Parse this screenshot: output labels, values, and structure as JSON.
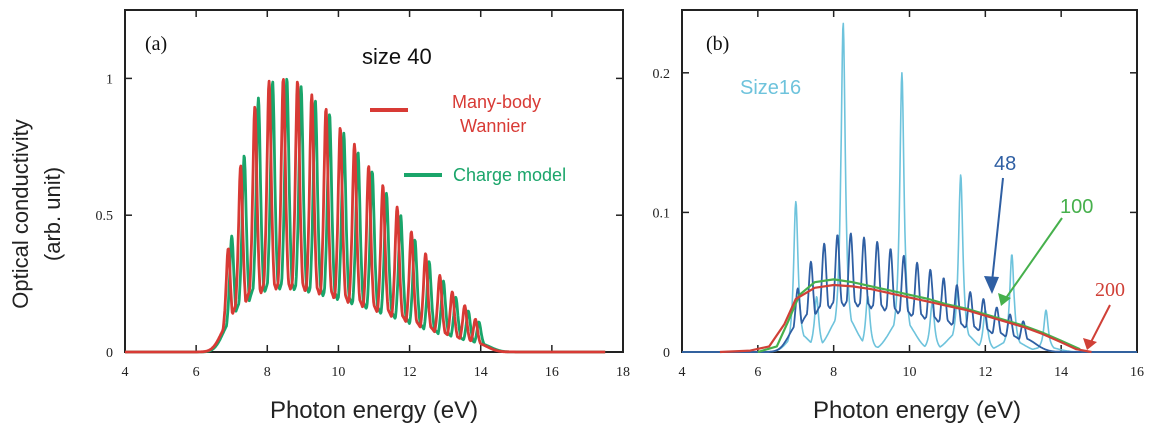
{
  "figure": {
    "ylabel_line1": "Optical conductivity",
    "ylabel_line2": "(arb. unit)"
  },
  "chart_data": [
    {
      "type": "line",
      "panel_label": "(a)",
      "annotation": "size 40",
      "xlabel": "Photon energy (eV)",
      "xlim": [
        4,
        18
      ],
      "ylim": [
        0,
        1.25
      ],
      "xticks": [
        4,
        6,
        8,
        10,
        12,
        14,
        16,
        18
      ],
      "yticks": [
        0,
        0.5,
        1
      ],
      "ytick_labels": [
        "0",
        "0.5",
        "1"
      ],
      "grid": false,
      "legend_position": "top-right",
      "series": [
        {
          "name": "Many-body Wannier",
          "color": "#d83a35",
          "onset": 6.0,
          "cutoff": 14.8,
          "peaks": [
            {
              "x": 6.9,
              "y": 0.45
            },
            {
              "x": 7.25,
              "y": 0.7
            },
            {
              "x": 7.65,
              "y": 0.9
            },
            {
              "x": 8.05,
              "y": 0.99
            },
            {
              "x": 8.45,
              "y": 1.0
            },
            {
              "x": 8.85,
              "y": 0.99
            },
            {
              "x": 9.25,
              "y": 0.94
            },
            {
              "x": 9.65,
              "y": 0.89
            },
            {
              "x": 10.05,
              "y": 0.82
            },
            {
              "x": 10.45,
              "y": 0.76
            },
            {
              "x": 10.85,
              "y": 0.68
            },
            {
              "x": 11.25,
              "y": 0.61
            },
            {
              "x": 11.65,
              "y": 0.53
            },
            {
              "x": 12.05,
              "y": 0.44
            },
            {
              "x": 12.45,
              "y": 0.36
            },
            {
              "x": 12.85,
              "y": 0.28
            },
            {
              "x": 13.2,
              "y": 0.22
            },
            {
              "x": 13.55,
              "y": 0.17
            },
            {
              "x": 13.85,
              "y": 0.12
            }
          ]
        },
        {
          "name": "Charge model",
          "color": "#1aa56a",
          "onset": 6.0,
          "cutoff": 14.8,
          "peaks": [
            {
              "x": 7.0,
              "y": 0.47
            },
            {
              "x": 7.35,
              "y": 0.73
            },
            {
              "x": 7.75,
              "y": 0.93
            },
            {
              "x": 8.15,
              "y": 0.99
            },
            {
              "x": 8.55,
              "y": 1.0
            },
            {
              "x": 8.95,
              "y": 0.97
            },
            {
              "x": 9.35,
              "y": 0.92
            },
            {
              "x": 9.75,
              "y": 0.87
            },
            {
              "x": 10.15,
              "y": 0.8
            },
            {
              "x": 10.55,
              "y": 0.73
            },
            {
              "x": 10.95,
              "y": 0.66
            },
            {
              "x": 11.35,
              "y": 0.58
            },
            {
              "x": 11.75,
              "y": 0.5
            },
            {
              "x": 12.15,
              "y": 0.41
            },
            {
              "x": 12.55,
              "y": 0.33
            },
            {
              "x": 12.95,
              "y": 0.26
            },
            {
              "x": 13.3,
              "y": 0.2
            },
            {
              "x": 13.65,
              "y": 0.15
            },
            {
              "x": 13.95,
              "y": 0.11
            }
          ]
        }
      ]
    },
    {
      "type": "line",
      "panel_label": "(b)",
      "xlabel": "Photon energy (eV)",
      "xlim": [
        4,
        16
      ],
      "ylim": [
        0,
        0.245
      ],
      "xticks": [
        4,
        6,
        8,
        10,
        12,
        14,
        16
      ],
      "yticks": [
        0,
        0.1,
        0.2
      ],
      "ytick_labels": [
        "0",
        "0.1",
        "0.2"
      ],
      "grid": false,
      "series": [
        {
          "name": "Size16",
          "color": "#6ec3dc",
          "onset": 6.1,
          "cutoff": 14.6,
          "peaks": [
            {
              "x": 7.0,
              "y": 0.128
            },
            {
              "x": 7.55,
              "y": 0.04
            },
            {
              "x": 8.25,
              "y": 0.236
            },
            {
              "x": 8.9,
              "y": 0.04
            },
            {
              "x": 9.8,
              "y": 0.2
            },
            {
              "x": 10.6,
              "y": 0.035
            },
            {
              "x": 11.35,
              "y": 0.127
            },
            {
              "x": 12.0,
              "y": 0.03
            },
            {
              "x": 12.7,
              "y": 0.07
            },
            {
              "x": 13.6,
              "y": 0.03
            }
          ]
        },
        {
          "name": "48",
          "color": "#2f5fa3",
          "onset": 6.1,
          "cutoff": 14.6,
          "peaks": [
            {
              "x": 7.05,
              "y": 0.052
            },
            {
              "x": 7.4,
              "y": 0.066
            },
            {
              "x": 7.75,
              "y": 0.078
            },
            {
              "x": 8.1,
              "y": 0.084
            },
            {
              "x": 8.45,
              "y": 0.085
            },
            {
              "x": 8.8,
              "y": 0.082
            },
            {
              "x": 9.15,
              "y": 0.079
            },
            {
              "x": 9.5,
              "y": 0.074
            },
            {
              "x": 9.85,
              "y": 0.069
            },
            {
              "x": 10.2,
              "y": 0.064
            },
            {
              "x": 10.55,
              "y": 0.059
            },
            {
              "x": 10.9,
              "y": 0.053
            },
            {
              "x": 11.25,
              "y": 0.048
            },
            {
              "x": 11.6,
              "y": 0.043
            },
            {
              "x": 11.95,
              "y": 0.038
            },
            {
              "x": 12.3,
              "y": 0.032
            },
            {
              "x": 12.65,
              "y": 0.027
            },
            {
              "x": 13.0,
              "y": 0.022
            }
          ]
        },
        {
          "name": "100",
          "color": "#46b04c",
          "points": [
            [
              6.0,
              0.0
            ],
            [
              6.5,
              0.004
            ],
            [
              6.8,
              0.022
            ],
            [
              7.1,
              0.041
            ],
            [
              7.5,
              0.05
            ],
            [
              8.0,
              0.052
            ],
            [
              8.5,
              0.05
            ],
            [
              9.0,
              0.047
            ],
            [
              9.5,
              0.044
            ],
            [
              10.0,
              0.041
            ],
            [
              10.5,
              0.038
            ],
            [
              11.0,
              0.034
            ],
            [
              11.5,
              0.031
            ],
            [
              12.0,
              0.027
            ],
            [
              12.5,
              0.023
            ],
            [
              13.0,
              0.019
            ],
            [
              13.5,
              0.014
            ],
            [
              14.0,
              0.008
            ],
            [
              14.5,
              0.002
            ]
          ]
        },
        {
          "name": "200",
          "color": "#d04037",
          "points": [
            [
              5.0,
              0.0
            ],
            [
              5.8,
              0.001
            ],
            [
              6.3,
              0.004
            ],
            [
              6.7,
              0.02
            ],
            [
              7.0,
              0.038
            ],
            [
              7.5,
              0.046
            ],
            [
              8.0,
              0.048
            ],
            [
              8.5,
              0.047
            ],
            [
              9.0,
              0.045
            ],
            [
              9.5,
              0.042
            ],
            [
              10.0,
              0.039
            ],
            [
              10.5,
              0.036
            ],
            [
              11.0,
              0.033
            ],
            [
              11.5,
              0.03
            ],
            [
              12.0,
              0.026
            ],
            [
              12.5,
              0.022
            ],
            [
              13.0,
              0.018
            ],
            [
              13.5,
              0.013
            ],
            [
              14.0,
              0.007
            ],
            [
              14.4,
              0.002
            ],
            [
              14.8,
              0.0
            ]
          ]
        }
      ]
    }
  ]
}
